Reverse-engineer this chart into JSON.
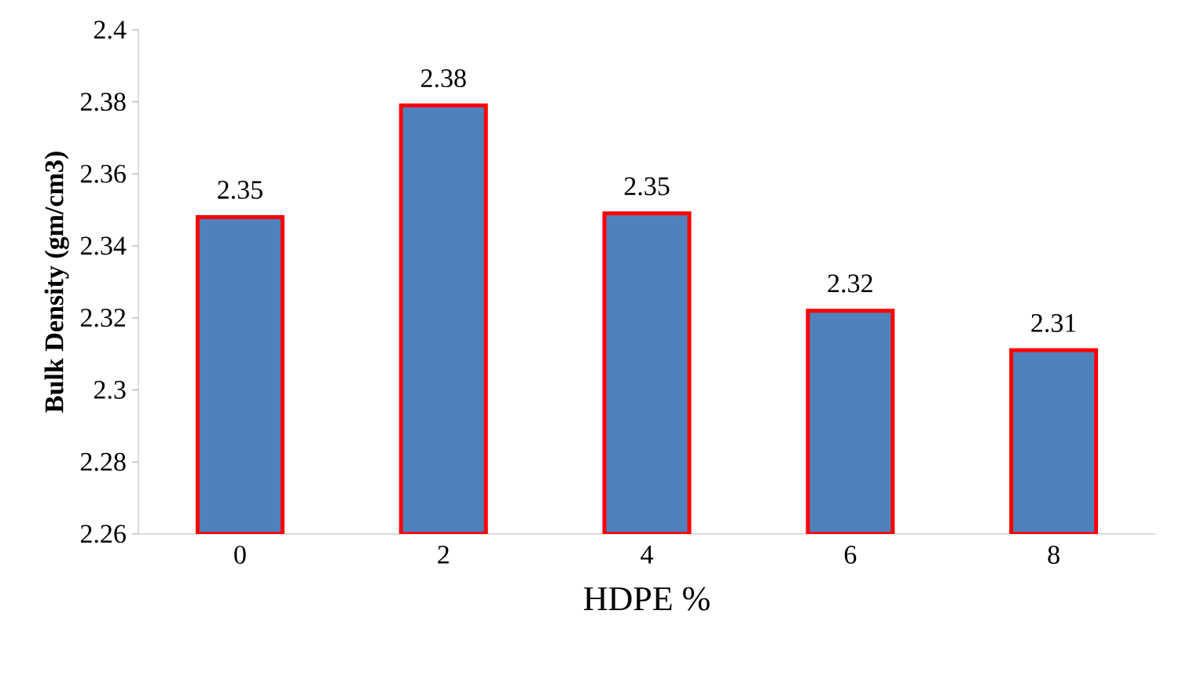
{
  "chart_data": {
    "type": "bar",
    "xlabel": "HDPE %",
    "ylabel": "Bulk Density (gm/cm3)",
    "categories": [
      "0",
      "2",
      "4",
      "6",
      "8"
    ],
    "values": [
      2.348,
      2.379,
      2.349,
      2.322,
      2.311
    ],
    "value_labels": [
      "2.35",
      "2.38",
      "2.35",
      "2.32",
      "2.31"
    ],
    "color": "#4f81bd",
    "ylim": [
      2.26,
      2.4
    ],
    "yticks": [
      2.26,
      2.28,
      2.3,
      2.32,
      2.34,
      2.36,
      2.38,
      2.4
    ],
    "grid": false
  }
}
